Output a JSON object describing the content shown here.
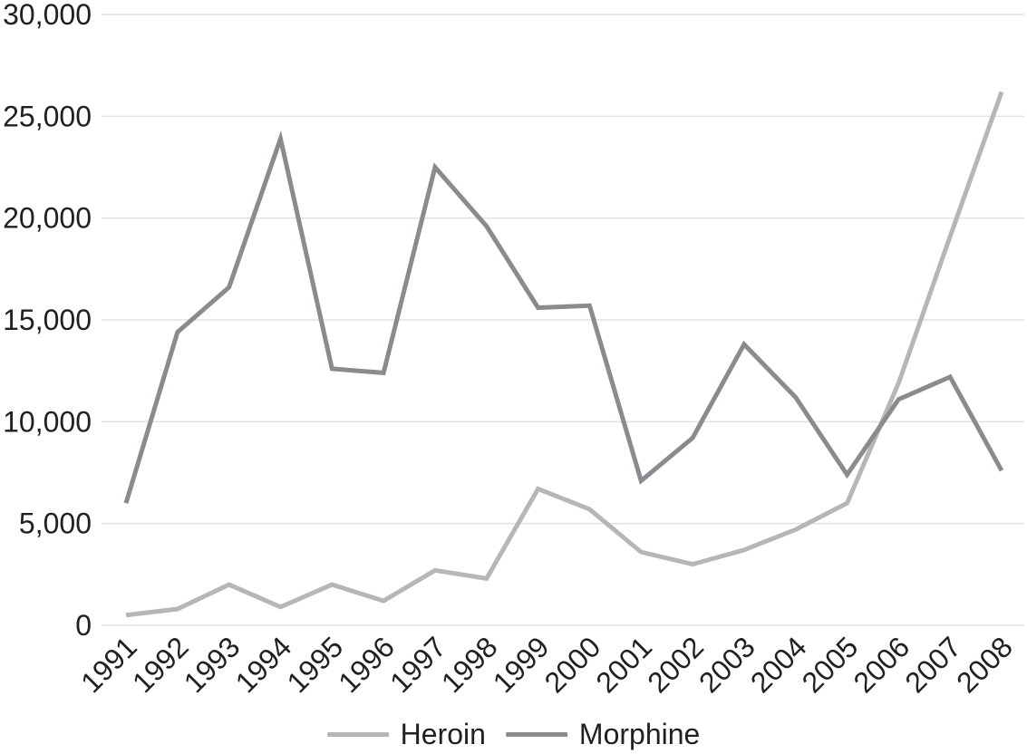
{
  "chart_data": {
    "type": "line",
    "x": [
      "1991",
      "1992",
      "1993",
      "1994",
      "1995",
      "1996",
      "1997",
      "1998",
      "1999",
      "2000",
      "2001",
      "2002",
      "2003",
      "2004",
      "2005",
      "2006",
      "2007",
      "2008"
    ],
    "series": [
      {
        "name": "Heroin",
        "color": "#b4b6b8",
        "values": [
          500,
          800,
          2000,
          900,
          2000,
          1200,
          2700,
          2300,
          6700,
          5700,
          3600,
          3000,
          3700,
          4700,
          6000,
          11900,
          19100,
          26200
        ]
      },
      {
        "name": "Morphine",
        "color": "#898b8e",
        "values": [
          6000,
          14400,
          16600,
          23900,
          12600,
          12400,
          22500,
          19600,
          15600,
          15700,
          7100,
          9200,
          13800,
          11200,
          7400,
          11100,
          12200,
          7600
        ]
      }
    ],
    "ylim": [
      0,
      30000
    ],
    "y_ticks": [
      {
        "value": 0,
        "label": "0"
      },
      {
        "value": 5000,
        "label": "5,000"
      },
      {
        "value": 10000,
        "label": "10,000"
      },
      {
        "value": 15000,
        "label": "15,000"
      },
      {
        "value": 20000,
        "label": "20,000"
      },
      {
        "value": 25000,
        "label": "25,000"
      },
      {
        "value": 30000,
        "label": "30,000"
      }
    ],
    "grid": "horizontal",
    "legend_position": "bottom-center",
    "x_tick_rotation": -45
  },
  "legend": {
    "items": [
      {
        "label": "Heroin",
        "color": "#b4b6b8"
      },
      {
        "label": "Morphine",
        "color": "#898b8e"
      }
    ]
  },
  "colors": {
    "text": "#231f20",
    "gridline": "#e2e2e3",
    "background": "#ffffff"
  }
}
